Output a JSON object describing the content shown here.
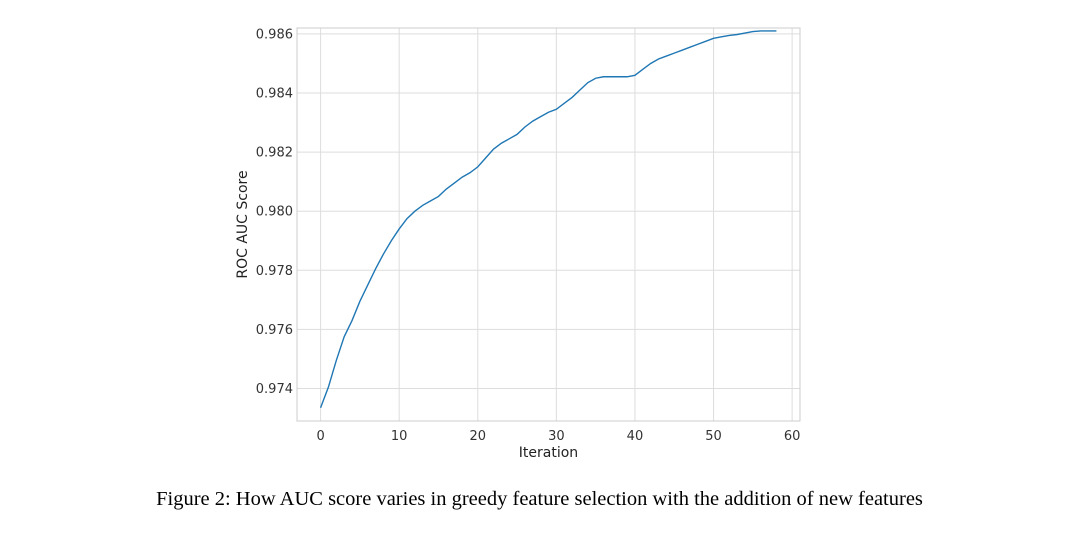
{
  "chart_data": {
    "type": "line",
    "xlabel": "Iteration",
    "ylabel": "ROC AUC Score",
    "xlim": [
      -3,
      61
    ],
    "ylim": [
      0.9729,
      0.9862
    ],
    "xticks": [
      0,
      10,
      20,
      30,
      40,
      50,
      60
    ],
    "yticks": [
      0.974,
      0.976,
      0.978,
      0.98,
      0.982,
      0.984,
      0.986
    ],
    "ytick_labels": [
      "0.974",
      "0.976",
      "0.978",
      "0.980",
      "0.982",
      "0.984",
      "0.986"
    ],
    "grid": true,
    "line_color": "#1f77b4",
    "series": [
      {
        "x": [
          0,
          1,
          2,
          3,
          4,
          5,
          6,
          7,
          8,
          9,
          10,
          11,
          12,
          13,
          14,
          15,
          16,
          17,
          18,
          19,
          20,
          21,
          22,
          23,
          24,
          25,
          26,
          27,
          28,
          29,
          30,
          31,
          32,
          33,
          34,
          35,
          36,
          37,
          38,
          39,
          40,
          41,
          42,
          43,
          44,
          45,
          46,
          47,
          48,
          49,
          50,
          51,
          52,
          53,
          54,
          55,
          56,
          57,
          58
        ],
        "y": [
          0.97335,
          0.97405,
          0.97495,
          0.97575,
          0.9763,
          0.97695,
          0.9775,
          0.97805,
          0.97855,
          0.979,
          0.9794,
          0.97975,
          0.98,
          0.9802,
          0.98035,
          0.9805,
          0.98075,
          0.98095,
          0.98115,
          0.9813,
          0.9815,
          0.9818,
          0.9821,
          0.9823,
          0.98245,
          0.9826,
          0.98285,
          0.98305,
          0.9832,
          0.98335,
          0.98345,
          0.98365,
          0.98385,
          0.9841,
          0.98435,
          0.9845,
          0.98455,
          0.98455,
          0.98455,
          0.98455,
          0.9846,
          0.9848,
          0.985,
          0.98515,
          0.98525,
          0.98535,
          0.98545,
          0.98555,
          0.98565,
          0.98575,
          0.98585,
          0.9859,
          0.98595,
          0.98598,
          0.98603,
          0.98608,
          0.9861,
          0.9861,
          0.9861
        ]
      }
    ]
  },
  "caption": "Figure 2: How AUC score varies in greedy feature selection with the addition of new features"
}
